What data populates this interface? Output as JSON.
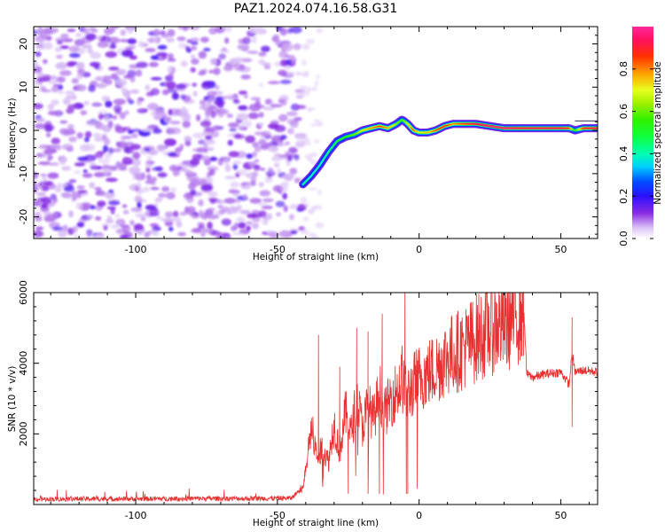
{
  "figure_title": "PAZ1.2024.074.16.58.G31",
  "chart_data": [
    {
      "type": "heatmap",
      "title": "",
      "xlabel": "Height of straight line (km)",
      "ylabel": "Frequency (Hz)",
      "xlim": [
        -136,
        63
      ],
      "ylim": [
        -25,
        24
      ],
      "x_ticks": [
        -100,
        -50,
        0,
        50
      ],
      "y_ticks": [
        -20,
        -10,
        0,
        10,
        20
      ],
      "colormap": "gist_ncar",
      "noise_region_x": [
        -136,
        -41
      ],
      "signal_ridge": {
        "x": [
          -41,
          -38,
          -35,
          -32,
          -29,
          -26,
          -23,
          -20,
          -17,
          -14,
          -11,
          -8,
          -6,
          -4,
          -2,
          0,
          3,
          6,
          9,
          12,
          15,
          20,
          25,
          30,
          37,
          45,
          50,
          53,
          55,
          58,
          63
        ],
        "freq": [
          -12.5,
          -10.5,
          -8,
          -5,
          -2.5,
          -1.5,
          -1,
          0,
          0.5,
          1,
          0.5,
          1.5,
          2.5,
          1.5,
          0,
          -0.5,
          -0.5,
          0,
          1,
          1.5,
          1.5,
          1.5,
          1,
          0.5,
          0.5,
          0.5,
          0.5,
          0.5,
          0,
          0.5,
          0.5
        ],
        "amplitude": [
          0.45,
          0.4,
          0.4,
          0.45,
          0.5,
          0.55,
          0.6,
          0.7,
          0.8,
          0.85,
          0.8,
          0.65,
          0.55,
          0.7,
          0.85,
          0.7,
          0.75,
          0.85,
          0.9,
          0.8,
          0.85,
          0.95,
          1.0,
          1.0,
          0.95,
          0.95,
          0.95,
          0.9,
          0.5,
          0.9,
          0.95
        ]
      },
      "colorbar": {
        "label": "Normalized spectral amplitude",
        "range": [
          0,
          1
        ],
        "ticks": [
          0,
          0.2,
          0.4,
          0.6,
          0.8
        ],
        "tick_labels": [
          "0.0",
          "0.2",
          "0.4",
          "0.6",
          "0.8"
        ]
      }
    },
    {
      "type": "line",
      "title": "",
      "xlabel": "Height of straight line (km)",
      "ylabel": "SNR (10 * v/v)",
      "xlim": [
        -136,
        63
      ],
      "ylim": [
        0,
        6000
      ],
      "x_ticks": [
        -100,
        -50,
        0,
        50
      ],
      "y_ticks": [
        2000,
        4000,
        6000
      ],
      "color": "#e83030",
      "series": [
        {
          "x": [
            -136,
            -120,
            -100,
            -80,
            -60,
            -45,
            -41,
            -38,
            -36,
            -34,
            -32,
            -30,
            -28,
            -26,
            -24,
            -22,
            -20,
            -18,
            -16,
            -14,
            -12,
            -10,
            -8,
            -6,
            -4,
            -2,
            0,
            5,
            10,
            15,
            20,
            25,
            30,
            35,
            37,
            38,
            40,
            45,
            50,
            53,
            54,
            55,
            58,
            63
          ],
          "y": [
            150,
            160,
            160,
            170,
            170,
            180,
            500,
            2200,
            1300,
            1600,
            1200,
            2300,
            1500,
            2600,
            2000,
            3000,
            2200,
            2800,
            2400,
            3200,
            2600,
            3000,
            3200,
            3500,
            3100,
            3400,
            3600,
            3800,
            4200,
            4400,
            4700,
            5000,
            5100,
            5400,
            5500,
            3700,
            3600,
            3700,
            3750,
            3400,
            4300,
            3750,
            3800,
            3750
          ]
        }
      ],
      "peaks": {
        "x": [
          -35.5,
          -28,
          -22,
          -18,
          -13,
          -6,
          -5,
          -4.5,
          54
        ],
        "y": [
          4800,
          3900,
          5000,
          4900,
          5400,
          4500,
          6000,
          300,
          5300
        ]
      },
      "dips": {
        "x": [
          -34,
          -25,
          -18,
          -14,
          -4,
          54
        ],
        "y": [
          500,
          300,
          300,
          300,
          300,
          2200
        ]
      }
    }
  ]
}
